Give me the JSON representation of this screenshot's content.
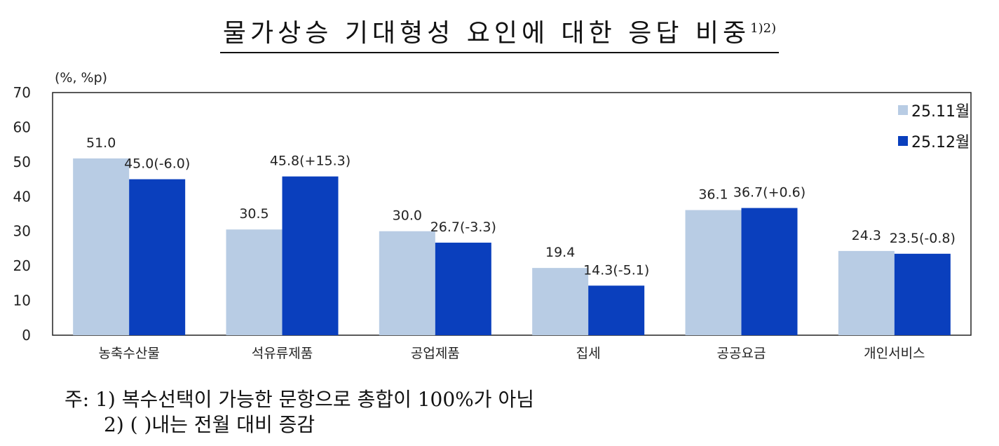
{
  "chart_data": {
    "type": "bar",
    "title": "물가상승 기대형성 요인에 대한 응답 비중",
    "title_superscript": "1)2)",
    "unit_label": "(%, %p)",
    "categories": [
      "농축수산물",
      "석유류제품",
      "공업제품",
      "집세",
      "공공요금",
      "개인서비스"
    ],
    "series": [
      {
        "name": "25.11월",
        "color": "#b8cce4",
        "values": [
          51.0,
          30.5,
          30.0,
          19.4,
          36.1,
          24.3
        ],
        "labels": [
          "51.0",
          "30.5",
          "30.0",
          "19.4",
          "36.1",
          "24.3"
        ]
      },
      {
        "name": "25.12월",
        "color": "#0a3fbd",
        "values": [
          45.0,
          45.8,
          26.7,
          14.3,
          36.7,
          23.5
        ],
        "labels": [
          "45.0(-6.0)",
          "45.8(+15.3)",
          "26.7(-3.3)",
          "14.3(-5.1)",
          "36.7(+0.6)",
          "23.5(-0.8)"
        ]
      }
    ],
    "ylim": [
      0,
      70
    ],
    "yticks": [
      "0",
      "10",
      "20",
      "30",
      "40",
      "50",
      "60",
      "70"
    ],
    "grid": false,
    "legend_position": "top-right"
  },
  "notes": {
    "line1": "주: 1) 복수선택이 가능한 문항으로 총합이 100%가 아님",
    "line2": "2) ( )내는 전월 대비 증감"
  }
}
